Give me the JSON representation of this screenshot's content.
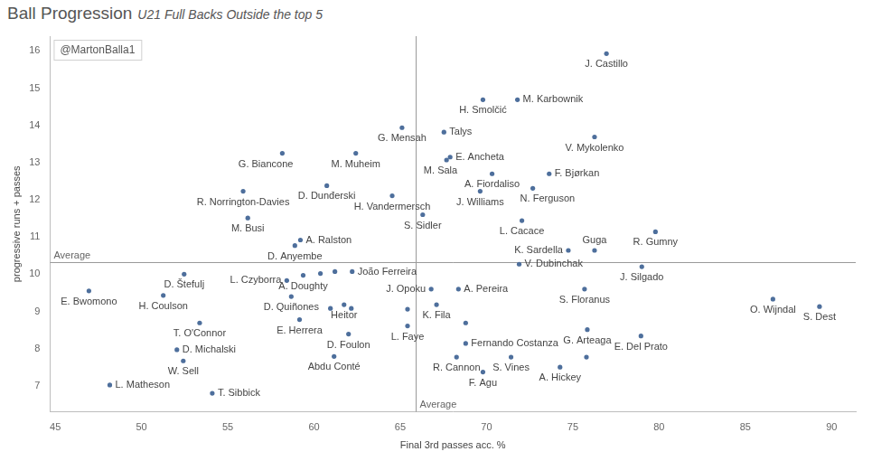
{
  "chart_data": {
    "type": "scatter",
    "title": "Ball Progression",
    "subtitle": "U21 Full Backs Outside the top 5",
    "watermark": "@MartonBalla1",
    "x_label": "Final 3rd passes acc. %",
    "y_label": "progressive runs + passes",
    "color": "#4e6f9c",
    "grid": false,
    "xlim": [
      44.7,
      91.4
    ],
    "xticks": [
      45,
      50,
      55,
      60,
      65,
      70,
      75,
      80,
      85,
      90
    ],
    "ylim": [
      6.3,
      16.4
    ],
    "yticks": [
      7,
      8,
      9,
      10,
      11,
      12,
      13,
      14,
      15,
      16
    ],
    "reference_lines": [
      {
        "axis": "x",
        "value": 65.9,
        "label": "Average"
      },
      {
        "axis": "y",
        "value": 10.32,
        "label": "Average"
      }
    ],
    "labels": [
      "J. Castillo",
      "H. Smolčić",
      "M. Karbownik",
      "G. Mensah",
      "V. Mykolenko",
      "Talys",
      "G. Biancone",
      "M. Muheim",
      "E. Ancheta",
      "M. Sala",
      "A. Fiordaliso",
      "F. Bjørkan",
      "D. Dunđerski",
      "R. Norrington-Davies",
      "H. Vandermersch",
      "J. Williams",
      "N. Ferguson",
      "M. Busi",
      "S. Sidler",
      "L. Cacace",
      "A. Ralston",
      "D. Anyembe",
      "R. Gumny",
      "Guga",
      "K. Sardella",
      "V. Dubinchak",
      "J. Silgado",
      "O. Wijndal",
      "S. Dest",
      "S. Floranus",
      "E. Bwomono",
      "D. Štefulj",
      "H. Coulson",
      "T. O'Connor",
      "D. Michalski",
      "W. Sell",
      "L. Matheson",
      "T. Sibbick",
      "L. Czyborra",
      "A. Doughty",
      null,
      null,
      "João Ferreira",
      "D. Quiñones",
      null,
      "Heitor",
      null,
      "E. Herrera",
      "D. Foulon",
      "Abdu Conté",
      "J. Opoku",
      "A. Pereira",
      "K. Fila",
      null,
      "L. Faye",
      null,
      "Fernando Costanza",
      "R. Cannon",
      "F. Agu",
      "S. Vines",
      "A. Hickey",
      "G. Arteaga",
      "E. Del Prato",
      null
    ],
    "x": [
      76.95,
      69.79,
      71.79,
      65.1,
      76.26,
      67.53,
      58.16,
      62.42,
      67.89,
      67.68,
      70.32,
      73.63,
      60.74,
      55.89,
      64.53,
      69.63,
      72.68,
      56.16,
      66.3,
      72.05,
      59.21,
      58.89,
      79.79,
      76.26,
      74.74,
      71.89,
      79.0,
      86.6,
      89.3,
      75.68,
      46.95,
      52.47,
      51.26,
      53.37,
      52.05,
      52.42,
      48.16,
      54.1,
      58.42,
      59.37,
      60.37,
      61.21,
      62.21,
      58.68,
      60.95,
      61.74,
      62.16,
      59.16,
      62.0,
      61.16,
      66.79,
      68.37,
      67.1,
      65.42,
      65.42,
      68.79,
      68.79,
      68.26,
      69.79,
      71.42,
      74.26,
      75.84,
      78.95,
      75.79
    ],
    "values": [
      15.93,
      14.69,
      14.69,
      13.94,
      13.69,
      13.82,
      13.25,
      13.25,
      13.15,
      13.07,
      12.7,
      12.7,
      12.38,
      12.23,
      12.11,
      12.23,
      12.31,
      11.51,
      11.6,
      11.44,
      10.92,
      10.77,
      11.14,
      10.64,
      10.64,
      10.27,
      10.2,
      9.33,
      9.13,
      9.6,
      9.55,
      10.0,
      9.43,
      8.69,
      7.97,
      7.67,
      7.02,
      6.8,
      9.83,
      9.97,
      10.02,
      10.07,
      10.07,
      9.4,
      9.08,
      9.18,
      9.08,
      8.78,
      8.39,
      7.79,
      9.6,
      9.6,
      9.18,
      9.06,
      8.61,
      8.69,
      8.14,
      7.77,
      7.37,
      7.77,
      7.5,
      8.51,
      8.34,
      7.77
    ]
  }
}
